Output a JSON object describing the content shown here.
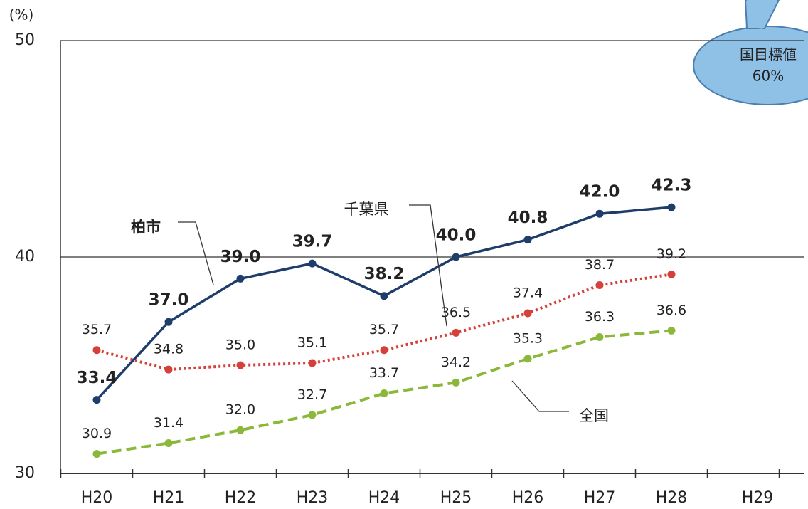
{
  "chart_data": {
    "type": "line",
    "y_label": "(%)",
    "categories": [
      "H20",
      "H21",
      "H22",
      "H23",
      "H24",
      "H25",
      "H26",
      "H27",
      "H28",
      "H29"
    ],
    "series": [
      {
        "name": "柏市",
        "color": "#1f3d6b",
        "style": "solid",
        "values": [
          33.4,
          37,
          39,
          39.7,
          38.2,
          40,
          40.8,
          42,
          42.3,
          null
        ],
        "value_labels": [
          "33.4",
          "37.0",
          "39.0",
          "39.7",
          "38.2",
          "40.0",
          "40.8",
          "42.0",
          "42.3",
          null
        ]
      },
      {
        "name": "千葉県",
        "color": "#d6403a",
        "style": "dotted",
        "values": [
          35.7,
          34.8,
          35,
          35.1,
          35.7,
          36.5,
          37.4,
          38.7,
          39.2,
          null
        ],
        "value_labels": [
          "35.7",
          "34.8",
          "35.0",
          "35.1",
          "35.7",
          "36.5",
          "37.4",
          "38.7",
          "39.2",
          null
        ]
      },
      {
        "name": "全国",
        "color": "#8cb83a",
        "style": "dashed",
        "values": [
          30.9,
          31.4,
          32,
          32.7,
          33.7,
          34.2,
          35.3,
          36.3,
          36.6,
          null
        ],
        "value_labels": [
          "30.9",
          "31.4",
          "32.0",
          "32.7",
          "33.7",
          "34.2",
          "35.3",
          "36.3",
          "36.6",
          null
        ]
      }
    ],
    "ylim": [
      30,
      50
    ],
    "yticks": [
      30,
      40,
      50
    ],
    "grid": true,
    "callout": [
      "国目標値",
      "60%"
    ]
  }
}
